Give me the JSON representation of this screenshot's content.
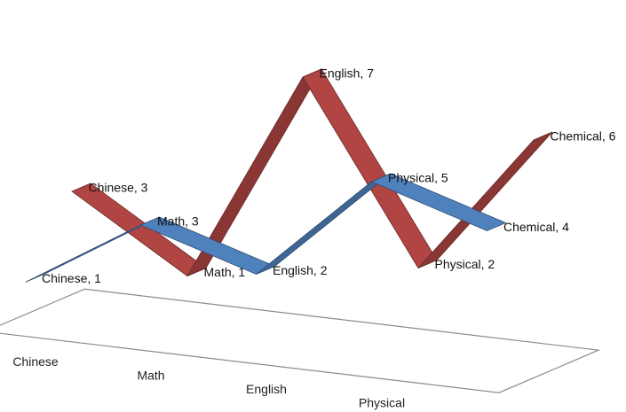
{
  "chart_data": {
    "type": "line",
    "style": "3d-ribbon",
    "categories": [
      "Chinese",
      "Math",
      "English",
      "Physical",
      "Chemical"
    ],
    "ylim": [
      0,
      7
    ],
    "yticks": [
      "0",
      "1",
      "2",
      "3",
      "4",
      "5",
      "6",
      "7"
    ],
    "series": [
      {
        "values": [
          1,
          3,
          2,
          5,
          4
        ],
        "color": "#4f81bd",
        "labels": [
          "Chinese, 1",
          "Math, 3",
          "English, 2",
          "Physical, 5",
          "Chemical, 4"
        ]
      },
      {
        "values": [
          3,
          1,
          7,
          2,
          6
        ],
        "color": "#b04543",
        "labels": [
          "Chinese, 3",
          "Math, 1",
          "English, 7",
          "Physical, 2",
          "Chemical, 6"
        ]
      }
    ]
  }
}
